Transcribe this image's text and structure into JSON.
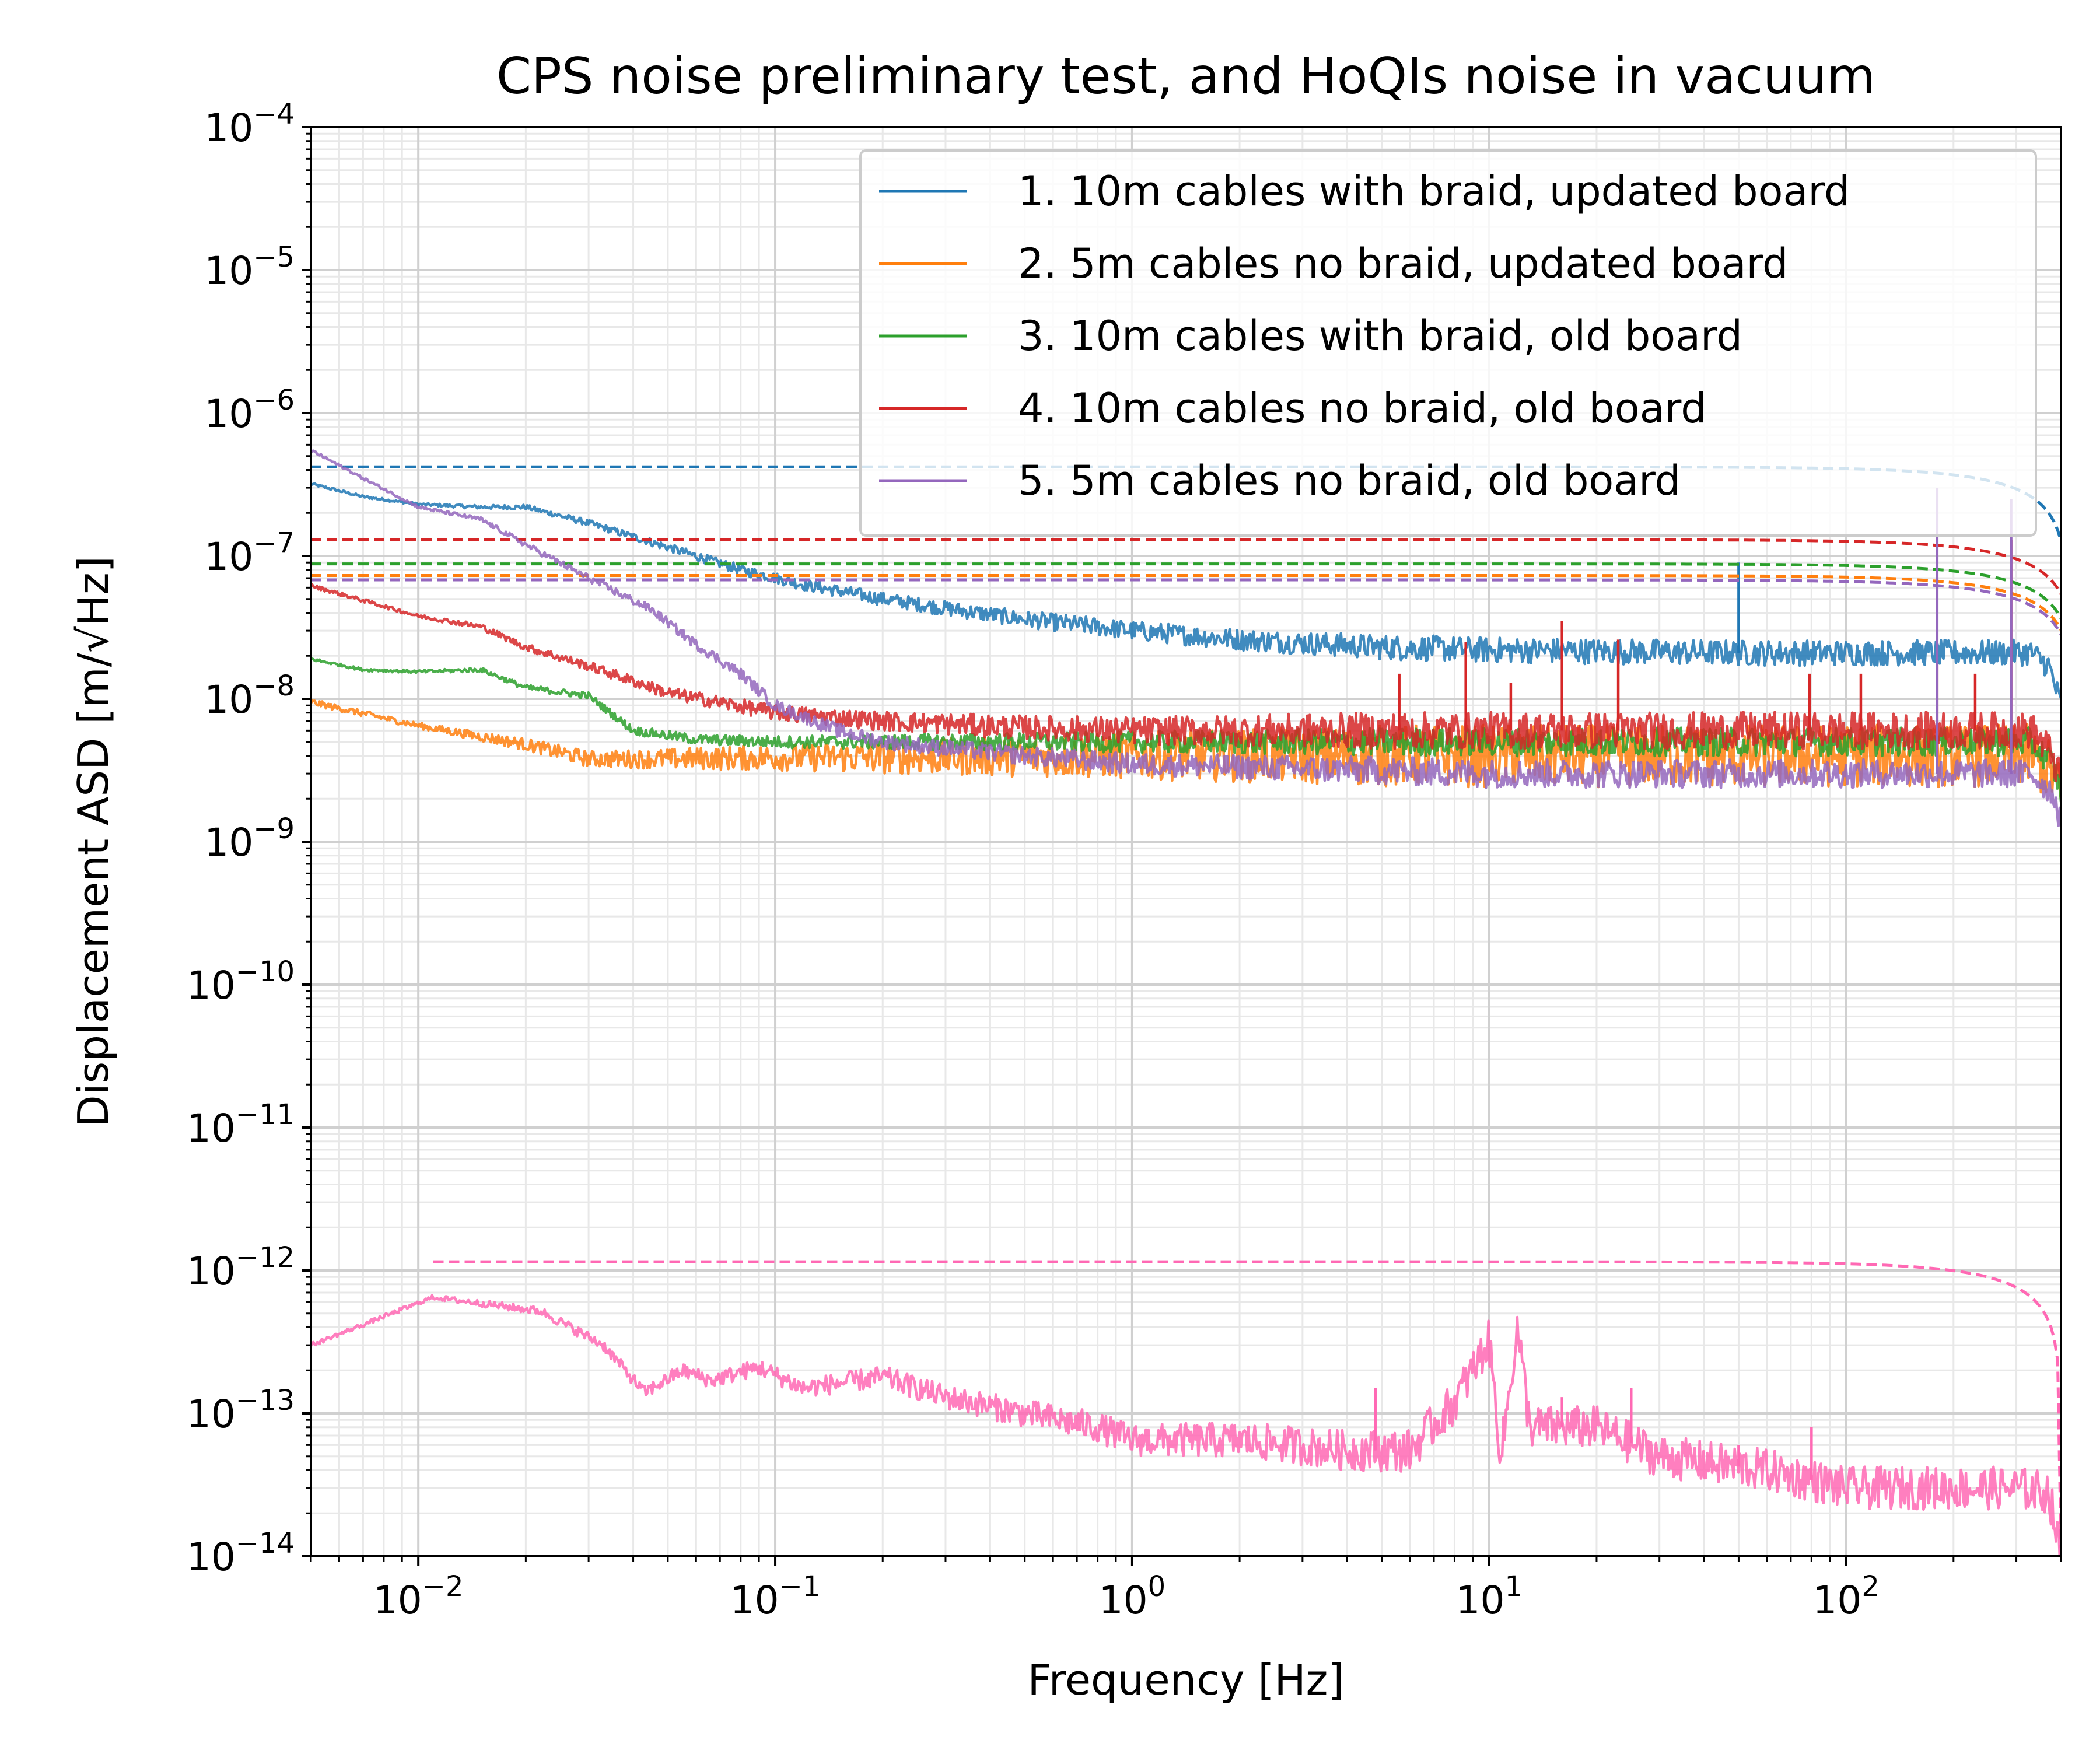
{
  "chart_data": {
    "type": "line",
    "title": "CPS noise preliminary test, and HoQIs noise in vacuum",
    "xlabel": "Frequency [Hz]",
    "ylabel": "Displacement ASD [m/√Hz]",
    "x_scale": "log",
    "y_scale": "log",
    "xlim": [
      0.005,
      400
    ],
    "ylim": [
      1e-14,
      0.0001
    ],
    "grid": "major and minor",
    "legend_position": "top-right",
    "x_ticks": [
      {
        "value": 0.01,
        "label": "10",
        "exp": "−2"
      },
      {
        "value": 0.1,
        "label": "10",
        "exp": "−1"
      },
      {
        "value": 1,
        "label": "10",
        "exp": "0"
      },
      {
        "value": 10,
        "label": "10",
        "exp": "1"
      },
      {
        "value": 100,
        "label": "10",
        "exp": "2"
      }
    ],
    "y_ticks": [
      {
        "value": 0.0001,
        "label": "10",
        "exp": "−4"
      },
      {
        "value": 1e-05,
        "label": "10",
        "exp": "−5"
      },
      {
        "value": 1e-06,
        "label": "10",
        "exp": "−6"
      },
      {
        "value": 1e-07,
        "label": "10",
        "exp": "−7"
      },
      {
        "value": 1e-08,
        "label": "10",
        "exp": "−8"
      },
      {
        "value": 1e-09,
        "label": "10",
        "exp": "−9"
      },
      {
        "value": 1e-10,
        "label": "10",
        "exp": "−10"
      },
      {
        "value": 1e-11,
        "label": "10",
        "exp": "−11"
      },
      {
        "value": 1e-12,
        "label": "10",
        "exp": "−12"
      },
      {
        "value": 1e-13,
        "label": "10",
        "exp": "−13"
      },
      {
        "value": 1e-14,
        "label": "10",
        "exp": "−14"
      }
    ],
    "series": [
      {
        "name": "1. 10m cables with braid, updated board",
        "color": "#1f77b4",
        "noise_band": 0.09,
        "points": [
          [
            0.005,
            3.2e-07
          ],
          [
            0.007,
            2.6e-07
          ],
          [
            0.01,
            2.3e-07
          ],
          [
            0.015,
            2.2e-07
          ],
          [
            0.02,
            2.2e-07
          ],
          [
            0.03,
            1.7e-07
          ],
          [
            0.05,
            1.15e-07
          ],
          [
            0.08,
            8e-08
          ],
          [
            0.12,
            6.3e-08
          ],
          [
            0.2,
            5e-08
          ],
          [
            0.3,
            4.3e-08
          ],
          [
            0.5,
            3.6e-08
          ],
          [
            0.8,
            3.2e-08
          ],
          [
            1,
            3e-08
          ],
          [
            2,
            2.6e-08
          ],
          [
            5,
            2.3e-08
          ],
          [
            10,
            2.2e-08
          ],
          [
            50,
            2.1e-08
          ],
          [
            200,
            2.1e-08
          ],
          [
            330,
            2.1e-08
          ],
          [
            370,
            1.7e-08
          ],
          [
            400,
            9e-09
          ]
        ],
        "spikes": [
          [
            50,
            9e-08
          ]
        ],
        "reference": {
          "level": 4.2e-07,
          "cutoff": 420
        }
      },
      {
        "name": "2. 5m cables no braid, updated board",
        "color": "#ff7f0e",
        "noise_band": 0.22,
        "points": [
          [
            0.005,
            9.5e-09
          ],
          [
            0.01,
            6.5e-09
          ],
          [
            0.02,
            4.8e-09
          ],
          [
            0.03,
            3.8e-09
          ],
          [
            0.05,
            3.8e-09
          ],
          [
            0.1,
            3.9e-09
          ],
          [
            0.2,
            3.9e-09
          ],
          [
            1,
            4e-09
          ],
          [
            10,
            4e-09
          ],
          [
            100,
            4e-09
          ],
          [
            330,
            4e-09
          ],
          [
            380,
            3e-09
          ],
          [
            400,
            2e-09
          ]
        ],
        "spikes": [],
        "reference": {
          "level": 7.3e-08,
          "cutoff": 440
        }
      },
      {
        "name": "3. 10m cables with braid, old board",
        "color": "#2ca02c",
        "noise_band": 0.1,
        "points": [
          [
            0.005,
            1.9e-08
          ],
          [
            0.007,
            1.6e-08
          ],
          [
            0.01,
            1.55e-08
          ],
          [
            0.015,
            1.6e-08
          ],
          [
            0.02,
            1.2e-08
          ],
          [
            0.03,
            1.05e-08
          ],
          [
            0.04,
            6e-09
          ],
          [
            0.06,
            5.2e-09
          ],
          [
            0.1,
            5e-09
          ],
          [
            0.2,
            5e-09
          ],
          [
            1,
            5e-09
          ],
          [
            10,
            5e-09
          ],
          [
            100,
            5e-09
          ],
          [
            330,
            5e-09
          ],
          [
            380,
            3.5e-09
          ],
          [
            400,
            2.2e-09
          ]
        ],
        "spikes": [],
        "reference": {
          "level": 8.8e-08,
          "cutoff": 440
        }
      },
      {
        "name": "4. 10m cables no braid, old board",
        "color": "#d62728",
        "noise_band": 0.13,
        "points": [
          [
            0.005,
            6.2e-08
          ],
          [
            0.01,
            3.8e-08
          ],
          [
            0.015,
            3.2e-08
          ],
          [
            0.02,
            2.3e-08
          ],
          [
            0.03,
            1.7e-08
          ],
          [
            0.05,
            1.1e-08
          ],
          [
            0.1,
            8e-09
          ],
          [
            0.2,
            7e-09
          ],
          [
            0.5,
            6.3e-09
          ],
          [
            1,
            6e-09
          ],
          [
            10,
            6e-09
          ],
          [
            100,
            6e-09
          ],
          [
            330,
            6e-09
          ],
          [
            380,
            4e-09
          ],
          [
            400,
            2.5e-09
          ]
        ],
        "spikes": [
          [
            5.6,
            1.5e-08
          ],
          [
            8.6,
            2.5e-08
          ],
          [
            11.5,
            1.3e-08
          ],
          [
            16,
            3.5e-08
          ],
          [
            23,
            2.6e-08
          ],
          [
            79,
            1.5e-08
          ],
          [
            110,
            1.5e-08
          ],
          [
            180,
            1.8e-08
          ],
          [
            230,
            1.5e-08
          ],
          [
            290,
            1.3e-07
          ]
        ],
        "reference": {
          "level": 1.3e-07,
          "cutoff": 440
        }
      },
      {
        "name": "5. 5m cables no braid, old board",
        "color": "#9467bd",
        "noise_band": 0.1,
        "points": [
          [
            0.005,
            5.5e-07
          ],
          [
            0.007,
            3.5e-07
          ],
          [
            0.01,
            2.2e-07
          ],
          [
            0.015,
            1.8e-07
          ],
          [
            0.02,
            1.2e-07
          ],
          [
            0.03,
            7e-08
          ],
          [
            0.045,
            4.2e-08
          ],
          [
            0.06,
            2.4e-08
          ],
          [
            0.08,
            1.5e-08
          ],
          [
            0.1,
            9e-09
          ],
          [
            0.15,
            6e-09
          ],
          [
            0.2,
            5e-09
          ],
          [
            0.5,
            4e-09
          ],
          [
            1,
            3.5e-09
          ],
          [
            10,
            3e-09
          ],
          [
            100,
            3e-09
          ],
          [
            330,
            3e-09
          ],
          [
            380,
            2.2e-09
          ],
          [
            400,
            1.4e-09
          ]
        ],
        "spikes": [
          [
            180,
            3e-07
          ],
          [
            290,
            2.5e-07
          ]
        ],
        "reference": {
          "level": 6.8e-08,
          "cutoff": 440
        }
      },
      {
        "name": "",
        "color": "#ff69b4",
        "noise_band": 0.15,
        "points": [
          [
            0.005,
            3e-13
          ],
          [
            0.011,
            6.5e-13
          ],
          [
            0.022,
            5.2e-13
          ],
          [
            0.033,
            3e-13
          ],
          [
            0.043,
            1.4e-13
          ],
          [
            0.055,
            2e-13
          ],
          [
            0.066,
            1.7e-13
          ],
          [
            0.09,
            2.1e-13
          ],
          [
            0.12,
            1.5e-13
          ],
          [
            0.2,
            1.8e-13
          ],
          [
            0.3,
            1.3e-13
          ],
          [
            0.5,
            1e-13
          ],
          [
            0.8,
            8e-14
          ],
          [
            1,
            6.5e-14
          ],
          [
            2,
            6.5e-14
          ],
          [
            4,
            5.5e-14
          ],
          [
            6,
            5.5e-14
          ],
          [
            8,
            1.2e-13
          ],
          [
            10,
            3.2e-13
          ],
          [
            10.8,
            5e-14
          ],
          [
            12,
            4e-13
          ],
          [
            13,
            8e-14
          ],
          [
            20,
            8e-14
          ],
          [
            30,
            5e-14
          ],
          [
            60,
            4e-14
          ],
          [
            100,
            3e-14
          ],
          [
            300,
            3e-14
          ],
          [
            370,
            2.8e-14
          ],
          [
            400,
            1e-14
          ]
        ],
        "spikes": [
          [
            4.8,
            1.5e-13
          ],
          [
            16,
            1.3e-13
          ],
          [
            25,
            1.5e-13
          ],
          [
            50,
            6e-14
          ],
          [
            80,
            8e-14
          ]
        ],
        "reference": {
          "level": 1.15e-12,
          "cutoff": 400
        }
      }
    ]
  }
}
